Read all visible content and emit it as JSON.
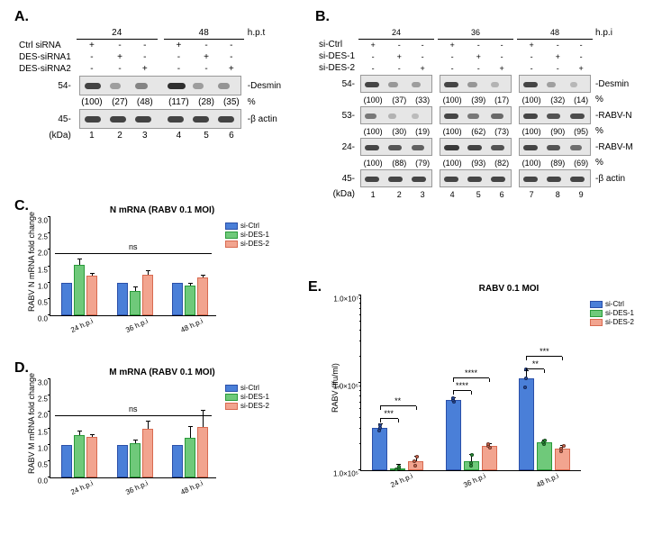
{
  "colors": {
    "siCtrl": "#4a7fd8",
    "siDES1": "#6fc97a",
    "siDES2": "#f2a48f",
    "siCtrl_border": "#2a4fa8",
    "siDES1_border": "#2a9a3a",
    "siDES2_border": "#d86a50"
  },
  "panelA": {
    "label": "A.",
    "timepoint_labels": [
      "24",
      "48"
    ],
    "hpt_label": "h.p.t",
    "rows": [
      {
        "label": "Ctrl siRNA",
        "marks": [
          "+",
          "-",
          "-",
          "+",
          "-",
          "-"
        ]
      },
      {
        "label": "DES-siRNA1",
        "marks": [
          "-",
          "+",
          "-",
          "-",
          "+",
          "-"
        ]
      },
      {
        "label": "DES-siRNA2",
        "marks": [
          "-",
          "-",
          "+",
          "-",
          "-",
          "+"
        ]
      }
    ],
    "mw_desmin": "54-",
    "mw_actin": "45-",
    "desmin_label": "-Desmin",
    "actin_label": "-β actin",
    "percent_label": "%",
    "percent_values": [
      "(100)",
      "(27)",
      "(48)",
      "(117)",
      "(28)",
      "(35)"
    ],
    "lane_numbers": [
      "1",
      "2",
      "3",
      "4",
      "5",
      "6"
    ],
    "kda_label": "(kDa)",
    "band_intensity_desmin": [
      100,
      27,
      48,
      117,
      28,
      35
    ],
    "band_intensity_actin": [
      100,
      100,
      100,
      100,
      100,
      100
    ]
  },
  "panelB": {
    "label": "B.",
    "timepoint_labels": [
      "24",
      "36",
      "48"
    ],
    "hpi_label": "h.p.i",
    "rows": [
      {
        "label": "si-Ctrl",
        "marks": [
          "+",
          "-",
          "-",
          "+",
          "-",
          "-",
          "+",
          "-",
          "-"
        ]
      },
      {
        "label": "si-DES-1",
        "marks": [
          "-",
          "+",
          "-",
          "-",
          "+",
          "-",
          "-",
          "+",
          "-"
        ]
      },
      {
        "label": "si-DES-2",
        "marks": [
          "-",
          "-",
          "+",
          "-",
          "-",
          "+",
          "-",
          "-",
          "+"
        ]
      }
    ],
    "mw": {
      "desmin": "54-",
      "rabvn": "53-",
      "rabvm": "24-",
      "actin": "45-"
    },
    "right_labels": {
      "desmin": "-Desmin",
      "rabvn": "-RABV-N",
      "rabvm": "-RABV-M",
      "actin": "-β actin"
    },
    "percent_desmin": [
      "(100)",
      "(37)",
      "(33)",
      "(100)",
      "(39)",
      "(17)",
      "(100)",
      "(32)",
      "(14)"
    ],
    "percent_rabvn": [
      "(100)",
      "(30)",
      "(19)",
      "(100)",
      "(62)",
      "(73)",
      "(100)",
      "(90)",
      "(95)"
    ],
    "percent_rabvm": [
      "(100)",
      "(88)",
      "(79)",
      "(100)",
      "(93)",
      "(82)",
      "(100)",
      "(89)",
      "(69)"
    ],
    "lane_numbers": [
      "1",
      "2",
      "3",
      "4",
      "5",
      "6",
      "7",
      "8",
      "9"
    ],
    "kda_label": "(kDa)",
    "percent_label": "%",
    "band_desmin": [
      100,
      37,
      33,
      100,
      39,
      17,
      100,
      32,
      14
    ],
    "band_rabvn": [
      60,
      18,
      11,
      100,
      62,
      73,
      100,
      90,
      95
    ],
    "band_rabvm": [
      100,
      88,
      79,
      110,
      102,
      90,
      100,
      89,
      69
    ],
    "band_actin": [
      100,
      100,
      100,
      100,
      100,
      100,
      100,
      100,
      100
    ]
  },
  "panelC": {
    "label": "C.",
    "title": "N mRNA (RABV 0.1 MOI)",
    "ylabel": "RABV N mRNA fold change",
    "ylim": [
      0,
      3.0
    ],
    "yticks": [
      0,
      0.5,
      1.0,
      1.5,
      2.0,
      2.5,
      3.0
    ],
    "categories": [
      "24 h.p.i",
      "36 h.p.i",
      "48 h.p.i"
    ],
    "series": [
      {
        "name": "si-Ctrl",
        "color_key": "siCtrl",
        "values": [
          1.0,
          1.0,
          1.0
        ],
        "err": [
          0,
          0,
          0
        ]
      },
      {
        "name": "si-DES-1",
        "color_key": "siDES1",
        "values": [
          1.55,
          0.75,
          0.92
        ],
        "err": [
          0.15,
          0.1,
          0.05
        ]
      },
      {
        "name": "si-DES-2",
        "color_key": "siDES2",
        "values": [
          1.22,
          1.25,
          1.15
        ],
        "err": [
          0.05,
          0.1,
          0.05
        ]
      }
    ],
    "ns_label": "ns"
  },
  "panelD": {
    "label": "D.",
    "title": "M mRNA (RABV 0.1 MOI)",
    "ylabel": "RABV M mRNA fold change",
    "ylim": [
      0,
      3.0
    ],
    "yticks": [
      0,
      0.5,
      1.0,
      1.5,
      2.0,
      2.5,
      3.0
    ],
    "categories": [
      "24 h.p.i",
      "36 h.p.i",
      "48 h.p.i"
    ],
    "series": [
      {
        "name": "si-Ctrl",
        "color_key": "siCtrl",
        "values": [
          1.0,
          1.0,
          1.0
        ],
        "err": [
          0,
          0,
          0
        ]
      },
      {
        "name": "si-DES-1",
        "color_key": "siDES1",
        "values": [
          1.3,
          1.05,
          1.2
        ],
        "err": [
          0.1,
          0.08,
          0.35
        ]
      },
      {
        "name": "si-DES-2",
        "color_key": "siDES2",
        "values": [
          1.25,
          1.5,
          1.55
        ],
        "err": [
          0.05,
          0.2,
          0.5
        ]
      }
    ],
    "ns_label": "ns"
  },
  "panelE": {
    "label": "E.",
    "title": "RABV 0.1 MOI",
    "ylabel": "RABV (ffu/ml)",
    "log_ylim": [
      5,
      7
    ],
    "yticks": [
      "1.0×10⁵",
      "1.0×10⁶",
      "1.0×10⁷"
    ],
    "categories": [
      "24 h.p.i",
      "36 h.p.i",
      "48 h.p.i"
    ],
    "series": [
      {
        "name": "si-Ctrl",
        "color_key": "siCtrl",
        "values_log": [
          5.48,
          5.8,
          6.05
        ],
        "err": [
          0.05,
          0.03,
          0.08
        ],
        "dots": [
          [
            5.45,
            5.48,
            5.52
          ],
          [
            5.78,
            5.8,
            5.82
          ],
          [
            5.95,
            6.05,
            6.15
          ]
        ]
      },
      {
        "name": "si-DES-1",
        "color_key": "siDES1",
        "values_log": [
          5.02,
          5.1,
          5.32
        ],
        "err": [
          0.04,
          0.08,
          0.02
        ],
        "dots": [
          [
            5.01,
            5.02,
            5.04
          ],
          [
            5.05,
            5.08,
            5.18
          ],
          [
            5.3,
            5.32,
            5.34
          ]
        ]
      },
      {
        "name": "si-DES-2",
        "color_key": "siDES2",
        "values_log": [
          5.1,
          5.28,
          5.25
        ],
        "err": [
          0.05,
          0.02,
          0.03
        ],
        "dots": [
          [
            5.05,
            5.1,
            5.15
          ],
          [
            5.26,
            5.28,
            5.3
          ],
          [
            5.22,
            5.25,
            5.28
          ]
        ]
      }
    ],
    "significance": [
      {
        "group": 0,
        "pairs": [
          {
            "from": 0,
            "to": 1,
            "stars": "***"
          },
          {
            "from": 0,
            "to": 2,
            "stars": "**"
          }
        ]
      },
      {
        "group": 1,
        "pairs": [
          {
            "from": 0,
            "to": 1,
            "stars": "****"
          },
          {
            "from": 0,
            "to": 2,
            "stars": "****"
          }
        ]
      },
      {
        "group": 2,
        "pairs": [
          {
            "from": 0,
            "to": 1,
            "stars": "**"
          },
          {
            "from": 0,
            "to": 2,
            "stars": "***"
          }
        ]
      }
    ]
  },
  "legend_items": [
    "si-Ctrl",
    "si-DES-1",
    "si-DES-2"
  ]
}
